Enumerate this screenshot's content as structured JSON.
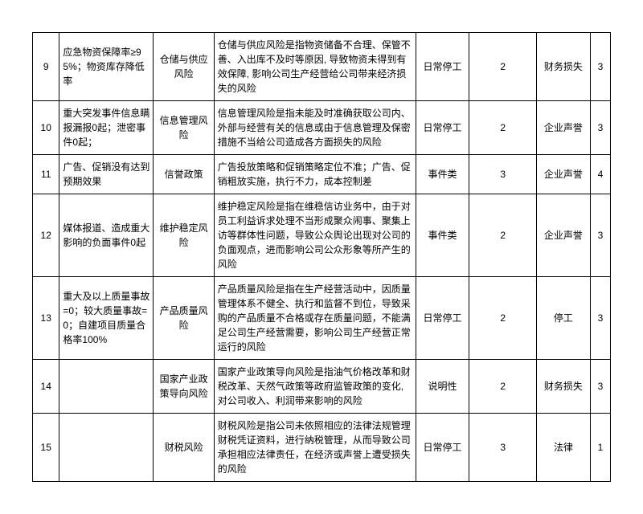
{
  "table": {
    "columns": [
      {
        "width": "4%",
        "align": "center"
      },
      {
        "width": "14%",
        "align": "left"
      },
      {
        "width": "9%",
        "align": "center"
      },
      {
        "width": "30%",
        "align": "left"
      },
      {
        "width": "8%",
        "align": "center"
      },
      {
        "width": "10%",
        "align": "center"
      },
      {
        "width": "8%",
        "align": "center"
      },
      {
        "width": "3%",
        "align": "center"
      }
    ],
    "rows": [
      {
        "id": "9",
        "desc": "应急物资保障率≥95%；物资库存降低率",
        "risk_name": "仓储与供应风险",
        "detail": "仓储与供应风险是指物资储备不合理、保管不善、入出库不及时等原因, 导致物资未得到有效保障, 影响公司生产经营给公司带来经济损失的风险",
        "category": "日常停工",
        "score1": "2",
        "impact": "财务损失",
        "score2": "3"
      },
      {
        "id": "10",
        "desc": "重大突发事件信息瞒报漏报0起；泄密事件0起；",
        "risk_name": "信息管理风险",
        "detail": "信息管理风险是指未能及时准确获取公司内、外部与经营有关的信息或由于信息管理及保密措施不当给公司造成各方面损失的风险",
        "category": "日常停工",
        "score1": "2",
        "impact": "企业声誉",
        "score2": "3"
      },
      {
        "id": "11",
        "desc": "广告、促销没有达到预期效果",
        "risk_name": "信誉政策",
        "detail": "广告投放策略和促销策略定位不准；广告、促销粗放实施，执行不力，成本控制差",
        "category": "事件类",
        "score1": "3",
        "impact": "企业声誉",
        "score2": "4"
      },
      {
        "id": "12",
        "desc": "媒体报道、造成重大影响的负面事件0起",
        "risk_name": "维护稳定风险",
        "detail": "维护稳定风险是指在维稳信访业务中，由于对员工利益诉求处理不当形成聚众闹事、聚集上访等群体性问题，导致公众舆论出现对公司的负面观点，进而影响公司公众形象等所产生的风险",
        "category": "事件类",
        "score1": "2",
        "impact": "企业声誉",
        "score2": "3"
      },
      {
        "id": "13",
        "desc": "重大及以上质量事故=0；较大质量事故=0；自建项目质量合格率100%",
        "risk_name": "产品质量风险",
        "detail": "产品质量风险是指在生产经营活动中，因质量管理体系不健全、执行和监督不到位，导致采购的产品质量不合格或存在质量问题，不能满足公司生产经营需要，影响公司生产经营正常运行的风险",
        "category": "日常停工",
        "score1": "2",
        "impact": "停工",
        "score2": "3"
      },
      {
        "id": "14",
        "desc": "",
        "risk_name": "国家产业政策导向风险",
        "detail": "国家产业政策导向风险是指油气价格改革和财税改革、天然气政策等政府监管政策的变化, 对公司收入、利润带来影响的风险",
        "category": "说明性",
        "score1": "2",
        "impact": "财务损失",
        "score2": "3"
      },
      {
        "id": "15",
        "desc": "",
        "risk_name": "财税风险",
        "detail": "财税风险是指公司未依照相应的法律法规管理财税凭证资料，进行纳税管理，从而导致公司承担相应法律责任，在经济或声誉上遭受损失的风险",
        "category": "日常停工",
        "score1": "3",
        "impact": "法律",
        "score2": "1"
      }
    ],
    "border_color": "#000000",
    "background_color": "#ffffff",
    "font_size": 12,
    "text_color": "#000000"
  }
}
